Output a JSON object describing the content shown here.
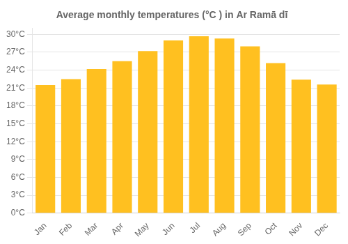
{
  "chart_data": {
    "type": "bar",
    "title": "Average monthly temperatures (°C ) in Ar Ramā dī",
    "categories": [
      "Jan",
      "Feb",
      "Mar",
      "Apr",
      "May",
      "Jun",
      "Jul",
      "Aug",
      "Sep",
      "Oct",
      "Nov",
      "Dec"
    ],
    "values": [
      21.5,
      22.5,
      24.2,
      25.5,
      27.2,
      29.0,
      29.7,
      29.3,
      28.0,
      25.2,
      22.4,
      21.6
    ],
    "color": "#FFC020",
    "ylim": [
      0,
      31
    ],
    "yticks": [
      {
        "value": 0,
        "label": "0°C"
      },
      {
        "value": 3,
        "label": "3°C"
      },
      {
        "value": 6,
        "label": "6°C"
      },
      {
        "value": 9,
        "label": "9°C"
      },
      {
        "value": 12,
        "label": "12°C"
      },
      {
        "value": 15,
        "label": "15°C"
      },
      {
        "value": 18,
        "label": "18°C"
      },
      {
        "value": 21,
        "label": "21°C"
      },
      {
        "value": 24,
        "label": "24°C"
      },
      {
        "value": 27,
        "label": "27°C"
      },
      {
        "value": 30,
        "label": "30°C"
      }
    ],
    "grid": true
  }
}
